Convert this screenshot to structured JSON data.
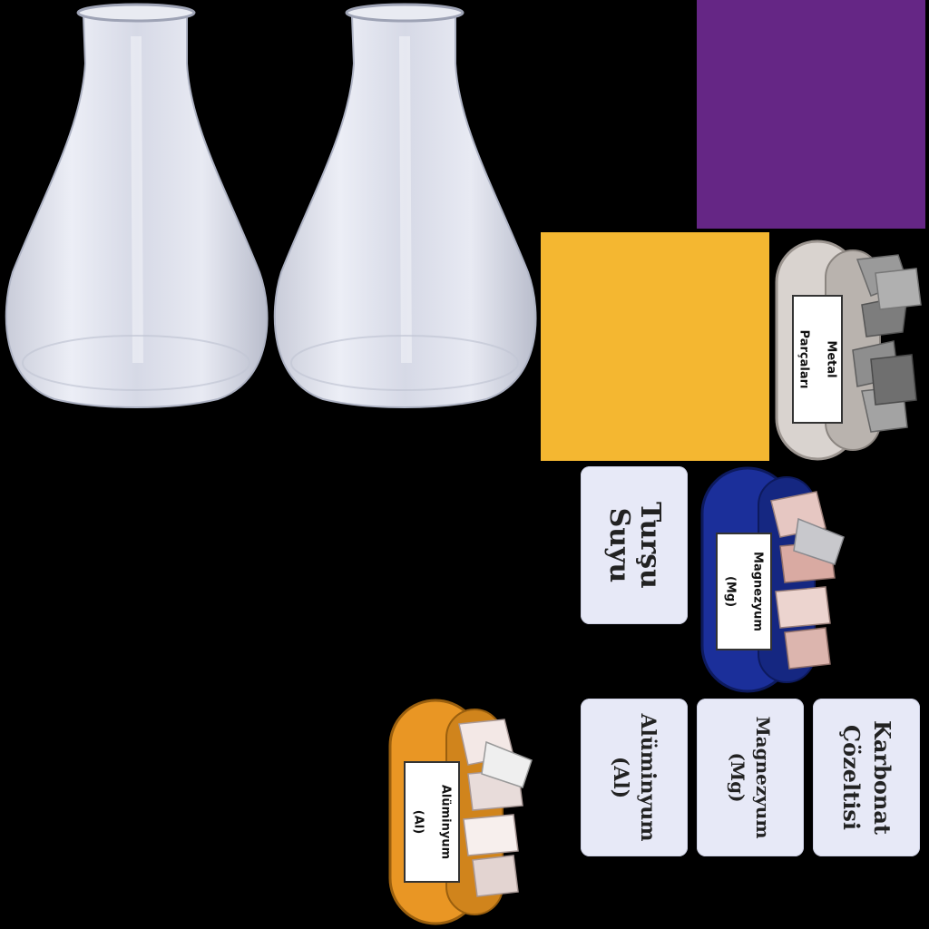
{
  "flasks": [
    {
      "name": "flask-1"
    },
    {
      "name": "flask-2"
    }
  ],
  "swatches": {
    "purple": "#652685",
    "yellow": "#f4b731"
  },
  "dishes": {
    "metal": {
      "label_line1": "Metal",
      "label_line2": "Parçaları",
      "color": "#d9d3cf"
    },
    "magnesium": {
      "label_line1": "Magnezyum",
      "label_line2": "(Mg)",
      "color": "#1b2f9a"
    },
    "aluminium": {
      "label_line1": "Alüminyum",
      "label_line2": "(Al)",
      "color": "#e99624"
    }
  },
  "cards": {
    "tursu": {
      "line1": "Turşu",
      "line2": "Suyu"
    },
    "aluminyum": {
      "line1": "Alüminyum",
      "line2": "(Al)"
    },
    "magnezyum": {
      "line1": "Magnezyum",
      "line2": "(Mg)"
    },
    "karbonat": {
      "line1": "Karbonat",
      "line2": "Çözeltisi"
    }
  }
}
